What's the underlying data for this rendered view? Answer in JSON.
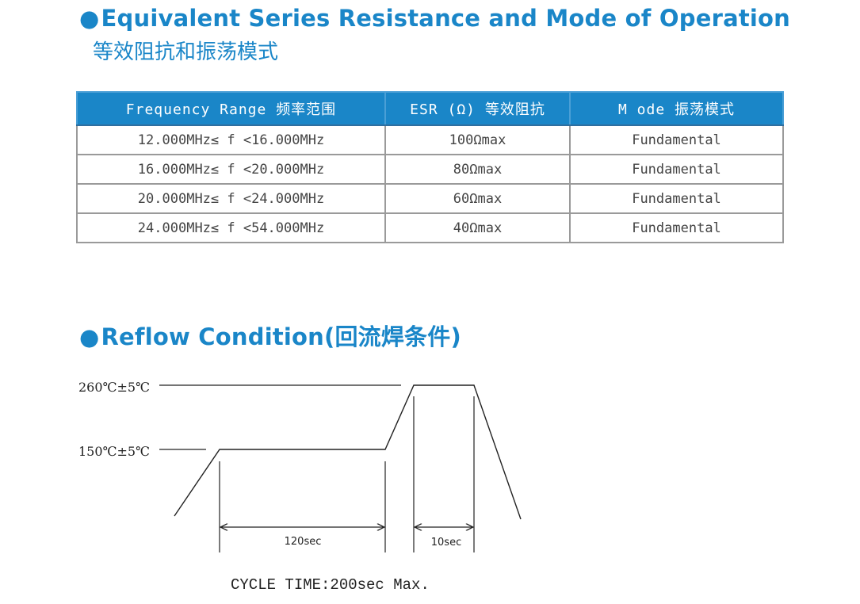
{
  "section1": {
    "bullet": "●",
    "title": "Equivalent Series Resistance  and Mode of Operation",
    "subtitle": "等效阻抗和振荡模式"
  },
  "table": {
    "headers": [
      "Frequency Range 频率范围",
      "ESR (Ω) 等效阻抗",
      "M ode 振荡模式"
    ],
    "rows": [
      [
        "12.000MHz≤ f <16.000MHz",
        "100Ωmax",
        "Fundamental"
      ],
      [
        "16.000MHz≤ f <20.000MHz",
        "80Ωmax",
        "Fundamental"
      ],
      [
        "20.000MHz≤ f <24.000MHz",
        "60Ωmax",
        "Fundamental"
      ],
      [
        "24.000MHz≤ f <54.000MHz",
        "40Ωmax",
        "Fundamental"
      ]
    ]
  },
  "section2": {
    "bullet": "●",
    "title": "Reflow Condition(回流焊条件)"
  },
  "reflow": {
    "peak_label": "260℃±5℃",
    "soak_label": "150℃±5℃",
    "soak_duration": "120sec",
    "peak_duration": "10sec",
    "cycle_time": "CYCLE TIME:200sec Max."
  },
  "colors": {
    "accent": "#1a86c8",
    "table_border": "#9a9a9a"
  }
}
